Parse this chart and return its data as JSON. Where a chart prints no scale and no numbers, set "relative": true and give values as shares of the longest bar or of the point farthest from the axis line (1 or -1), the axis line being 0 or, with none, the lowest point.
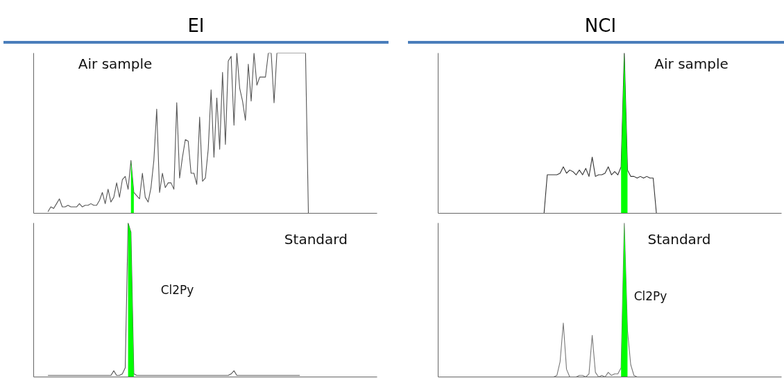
{
  "chart_data": [
    {
      "type": "line",
      "title": "EI",
      "relative": true,
      "tick_labels": false,
      "categories": [
        null,
        null,
        null,
        null,
        null,
        null,
        null,
        null,
        null,
        null,
        null,
        null,
        null,
        null,
        null,
        null,
        null,
        null,
        null,
        null,
        null,
        null,
        null,
        null,
        null,
        null,
        null,
        null,
        null,
        null,
        null,
        null,
        null,
        null,
        null,
        null,
        null,
        null,
        null,
        null,
        null,
        null,
        null,
        null,
        null,
        null,
        null,
        null,
        null,
        null,
        null,
        null,
        null,
        null,
        null,
        null,
        null,
        null,
        null,
        null,
        null,
        null,
        null,
        null,
        null,
        null,
        null,
        null,
        null,
        null,
        null,
        null,
        null,
        null,
        null,
        null,
        null,
        null,
        null,
        null,
        null,
        null,
        null,
        null,
        null,
        null,
        null,
        null,
        null,
        null,
        null,
        null,
        null,
        null,
        null,
        null,
        null,
        null,
        null,
        null,
        null,
        null,
        null,
        null,
        null,
        null,
        null,
        null,
        null,
        null,
        null,
        null,
        null,
        null,
        null,
        null,
        null,
        null,
        null,
        null,
        null
      ],
      "series": [
        {
          "color": "#555555",
          "values": [
            null,
            null,
            null,
            null,
            null,
            0.01,
            0.04,
            0.03,
            0.06,
            0.09,
            0.04,
            0.04,
            0.05,
            0.04,
            0.04,
            0.04,
            0.06,
            0.04,
            0.05,
            0.05,
            0.06,
            0.05,
            0.05,
            0.08,
            0.13,
            0.06,
            0.15,
            0.07,
            0.1,
            0.19,
            0.1,
            0.21,
            0.23,
            0.15,
            0.33,
            0.13,
            0.11,
            0.09,
            0.25,
            0.1,
            0.07,
            0.16,
            0.33,
            0.65,
            0.13,
            0.25,
            0.16,
            0.19,
            0.19,
            0.15,
            0.69,
            0.22,
            0.35,
            0.46,
            0.45,
            0.25,
            0.25,
            0.18,
            0.6,
            0.2,
            0.22,
            0.4,
            0.77,
            0.35,
            0.72,
            0.4,
            0.88,
            0.43,
            0.95,
            0.98,
            0.55,
            1.0,
            0.78,
            0.7,
            0.58,
            0.93,
            0.7,
            1.0,
            0.8,
            0.85,
            0.85,
            0.85,
            1.0,
            1.0,
            0.69,
            1.0,
            1.0,
            1.0,
            1.0,
            1.0,
            1.0,
            1.0,
            1.0,
            1.0,
            1.0,
            1.0,
            0,
            null,
            null,
            null,
            null,
            null,
            null,
            null,
            null,
            null,
            null,
            null,
            null,
            null,
            null,
            null,
            null,
            null,
            null,
            null,
            null,
            null,
            null,
            null,
            null
          ]
        },
        {
          "type": "area",
          "color": "#00ff00",
          "values": [
            null,
            null,
            null,
            null,
            null,
            null,
            null,
            null,
            null,
            null,
            null,
            null,
            null,
            null,
            null,
            null,
            null,
            null,
            null,
            null,
            null,
            null,
            null,
            null,
            null,
            null,
            null,
            null,
            null,
            null,
            null,
            null,
            null,
            null,
            0.33,
            0.13,
            null,
            null,
            null,
            null,
            null,
            null,
            null,
            null,
            null,
            null,
            null,
            null,
            null,
            null,
            null,
            null,
            null,
            null,
            null,
            null,
            null,
            null,
            null,
            null,
            null,
            null,
            null,
            null,
            null,
            null,
            null,
            null,
            null,
            null,
            null,
            null,
            null,
            null,
            null,
            null,
            null,
            null,
            null,
            null,
            null,
            null,
            null,
            null,
            null,
            null,
            null,
            null,
            null,
            null,
            null,
            null,
            null,
            null,
            null,
            null,
            null,
            null,
            null,
            null,
            null,
            null,
            null,
            null,
            null,
            null,
            null,
            null,
            null,
            null,
            null,
            null,
            null,
            null,
            null,
            null,
            null,
            null,
            null,
            null,
            null
          ]
        }
      ],
      "annotations": [
        "Air sample"
      ]
    },
    {
      "type": "line",
      "relative": true,
      "tick_labels": false,
      "categories": [
        null,
        null,
        null,
        null,
        null,
        null,
        null,
        null,
        null,
        null,
        null,
        null,
        null,
        null,
        null,
        null,
        null,
        null,
        null,
        null,
        null,
        null,
        null,
        null,
        null,
        null,
        null,
        null,
        null,
        null,
        null,
        null,
        null,
        null,
        null,
        null,
        null,
        null,
        null,
        null,
        null,
        null,
        null,
        null,
        null,
        null,
        null,
        null,
        null,
        null,
        null,
        null,
        null,
        null,
        null,
        null,
        null,
        null,
        null,
        null,
        null,
        null,
        null,
        null,
        null,
        null,
        null,
        null,
        null,
        null,
        null,
        null,
        null,
        null,
        null,
        null,
        null,
        null,
        null,
        null,
        null,
        null,
        null,
        null,
        null,
        null,
        null,
        null,
        null,
        null,
        null,
        null,
        null,
        null,
        null,
        null,
        null,
        null,
        null,
        null,
        null,
        null,
        null,
        null,
        null,
        null,
        null,
        null,
        null,
        null,
        null,
        null,
        null,
        null,
        null,
        null,
        null,
        null,
        null,
        null,
        null
      ],
      "series": [
        {
          "color": "#555555",
          "values": [
            null,
            null,
            null,
            null,
            null,
            0.01,
            0.01,
            0.01,
            0.01,
            0.01,
            0.01,
            0.01,
            0.01,
            0.01,
            0.01,
            0.01,
            0.01,
            0.01,
            0.01,
            0.01,
            0.01,
            0.01,
            0.01,
            0.01,
            0.01,
            0.01,
            0.01,
            0.01,
            0.04,
            0.01,
            0.01,
            0.02,
            0.06,
            1.0,
            0.94,
            0.02,
            0.01,
            0.01,
            0.01,
            0.01,
            0.01,
            0.01,
            0.01,
            0.01,
            0.01,
            0.01,
            0.01,
            0.01,
            0.01,
            0.01,
            0.01,
            0.01,
            0.01,
            0.01,
            0.01,
            0.01,
            0.01,
            0.01,
            0.01,
            0.01,
            0.01,
            0.01,
            0.01,
            0.01,
            0.01,
            0.01,
            0.01,
            0.01,
            0.01,
            0.02,
            0.04,
            0.01,
            0.01,
            0.01,
            0.01,
            0.01,
            0.01,
            0.01,
            0.01,
            0.01,
            0.01,
            0.01,
            0.01,
            0.01,
            0.01,
            0.01,
            0.01,
            0.01,
            0.01,
            0.01,
            0.01,
            0.01,
            0.01,
            0.01,
            null,
            null,
            null,
            null,
            null,
            null,
            null,
            null,
            null,
            null,
            null,
            null,
            null,
            null,
            null,
            null,
            null,
            null,
            null,
            null,
            null,
            null,
            null,
            null,
            null,
            null,
            null
          ]
        },
        {
          "type": "area",
          "color": "#00ff00",
          "values": [
            null,
            null,
            null,
            null,
            null,
            null,
            null,
            null,
            null,
            null,
            null,
            null,
            null,
            null,
            null,
            null,
            null,
            null,
            null,
            null,
            null,
            null,
            null,
            null,
            null,
            null,
            null,
            null,
            null,
            null,
            null,
            null,
            null,
            1.0,
            0.94,
            0.02,
            null,
            null,
            null,
            null,
            null,
            null,
            null,
            null,
            null,
            null,
            null,
            null,
            null,
            null,
            null,
            null,
            null,
            null,
            null,
            null,
            null,
            null,
            null,
            null,
            null,
            null,
            null,
            null,
            null,
            null,
            null,
            null,
            null,
            null,
            null,
            null,
            null,
            null,
            null,
            null,
            null,
            null,
            null,
            null,
            null,
            null,
            null,
            null,
            null,
            null,
            null,
            null,
            null,
            null,
            null,
            null,
            null,
            null,
            null,
            null,
            null,
            null,
            null,
            null,
            null,
            null,
            null,
            null,
            null,
            null,
            null,
            null,
            null,
            null,
            null,
            null,
            null,
            null,
            null,
            null,
            null,
            null,
            null,
            null,
            null
          ]
        }
      ],
      "annotations": [
        "Standard",
        "Cl2Py"
      ]
    },
    {
      "type": "line",
      "title": "NCI",
      "relative": true,
      "tick_labels": false,
      "categories": [
        null,
        null,
        null,
        null,
        null,
        null,
        null,
        null,
        null,
        null,
        null,
        null,
        null,
        null,
        null,
        null,
        null,
        null,
        null,
        null,
        null,
        null,
        null,
        null,
        null,
        null,
        null,
        null,
        null,
        null,
        null,
        null,
        null,
        null,
        null,
        null,
        null,
        null,
        null,
        null,
        null,
        null,
        null,
        null,
        null,
        null,
        null,
        null,
        null,
        null,
        null,
        null,
        null,
        null,
        null,
        null,
        null,
        null,
        null,
        null,
        null,
        null,
        null,
        null,
        null,
        null,
        null,
        null,
        null,
        null,
        null,
        null,
        null,
        null,
        null,
        null,
        null,
        null,
        null,
        null,
        null,
        null,
        null,
        null,
        null,
        null,
        null,
        null,
        null,
        null,
        null,
        null,
        null,
        null,
        null,
        null,
        null,
        null,
        null,
        null,
        null,
        null,
        null,
        null,
        null,
        null,
        null,
        null
      ],
      "series": [
        {
          "color": "#333333",
          "values": [
            null,
            null,
            null,
            null,
            null,
            null,
            null,
            null,
            null,
            null,
            null,
            null,
            null,
            null,
            null,
            null,
            null,
            null,
            null,
            null,
            null,
            null,
            null,
            null,
            null,
            null,
            null,
            null,
            null,
            null,
            null,
            null,
            null,
            0,
            0.24,
            0.24,
            0.24,
            0.24,
            0.25,
            0.29,
            0.25,
            0.27,
            0.26,
            0.24,
            0.27,
            0.24,
            0.28,
            0.23,
            0.35,
            0.23,
            0.24,
            0.24,
            0.25,
            0.29,
            0.24,
            0.26,
            0.24,
            0.29,
            1.0,
            0.27,
            0.23,
            0.23,
            0.22,
            0.23,
            0.22,
            0.23,
            0.22,
            0.22,
            0,
            null,
            null,
            null,
            null,
            null,
            null,
            null,
            null,
            null,
            null,
            null,
            null,
            null,
            null,
            null,
            null,
            null,
            null,
            null,
            null,
            null,
            null,
            null,
            null,
            null,
            null,
            null,
            null,
            null,
            null,
            null,
            null,
            null,
            null,
            null,
            null,
            null,
            null,
            null
          ]
        },
        {
          "type": "area",
          "color": "#00ff00",
          "values": [
            null,
            null,
            null,
            null,
            null,
            null,
            null,
            null,
            null,
            null,
            null,
            null,
            null,
            null,
            null,
            null,
            null,
            null,
            null,
            null,
            null,
            null,
            null,
            null,
            null,
            null,
            null,
            null,
            null,
            null,
            null,
            null,
            null,
            null,
            null,
            null,
            null,
            null,
            null,
            null,
            null,
            null,
            null,
            null,
            null,
            null,
            null,
            null,
            null,
            null,
            null,
            null,
            null,
            null,
            null,
            null,
            null,
            0.29,
            1.0,
            0.27,
            null,
            null,
            null,
            null,
            null,
            null,
            null,
            null,
            null,
            null,
            null,
            null,
            null,
            null,
            null,
            null,
            null,
            null,
            null,
            null,
            null,
            null,
            null,
            null,
            null,
            null,
            null,
            null,
            null,
            null,
            null,
            null,
            null,
            null,
            null,
            null,
            null,
            null,
            null,
            null,
            null,
            null,
            null,
            null,
            null,
            null,
            null,
            null
          ]
        }
      ],
      "annotations": [
        "Air sample"
      ]
    },
    {
      "type": "line",
      "relative": true,
      "tick_labels": false,
      "categories": [
        null,
        null,
        null,
        null,
        null,
        null,
        null,
        null,
        null,
        null,
        null,
        null,
        null,
        null,
        null,
        null,
        null,
        null,
        null,
        null,
        null,
        null,
        null,
        null,
        null,
        null,
        null,
        null,
        null,
        null,
        null,
        null,
        null,
        null,
        null,
        null,
        null,
        null,
        null,
        null,
        null,
        null,
        null,
        null,
        null,
        null,
        null,
        null,
        null,
        null,
        null,
        null,
        null,
        null,
        null,
        null,
        null,
        null,
        null,
        null,
        null,
        null,
        null,
        null,
        null,
        null,
        null,
        null,
        null,
        null,
        null,
        null,
        null,
        null,
        null,
        null,
        null,
        null,
        null,
        null,
        null,
        null,
        null,
        null,
        null,
        null,
        null,
        null,
        null,
        null,
        null,
        null,
        null,
        null,
        null,
        null,
        null,
        null,
        null,
        null,
        null,
        null,
        null,
        null,
        null,
        null,
        null,
        null
      ],
      "series": [
        {
          "color": "#777777",
          "values": [
            null,
            null,
            null,
            null,
            null,
            null,
            null,
            null,
            null,
            null,
            null,
            null,
            null,
            null,
            null,
            null,
            null,
            null,
            null,
            null,
            null,
            null,
            null,
            null,
            null,
            null,
            null,
            null,
            null,
            null,
            null,
            null,
            null,
            null,
            0,
            0,
            0,
            0.01,
            0.1,
            0.35,
            0.05,
            0,
            0,
            0,
            0.01,
            0.01,
            0,
            0.02,
            0.27,
            0.03,
            0,
            0.01,
            0,
            0.03,
            0.01,
            0.02,
            0.02,
            0.06,
            1.0,
            0.3,
            0.08,
            0.01,
            0,
            0,
            0,
            0,
            0,
            0,
            null,
            null,
            null,
            null,
            null,
            null,
            null,
            null,
            null,
            null,
            null,
            null,
            null,
            null,
            null,
            null,
            null,
            null,
            null,
            null,
            null,
            null,
            null,
            null,
            null,
            null,
            null,
            null,
            null,
            null,
            null,
            null,
            null,
            null,
            null,
            null,
            null,
            null,
            null,
            null
          ]
        },
        {
          "type": "area",
          "color": "#00ff00",
          "values": [
            null,
            null,
            null,
            null,
            null,
            null,
            null,
            null,
            null,
            null,
            null,
            null,
            null,
            null,
            null,
            null,
            null,
            null,
            null,
            null,
            null,
            null,
            null,
            null,
            null,
            null,
            null,
            null,
            null,
            null,
            null,
            null,
            null,
            null,
            null,
            null,
            null,
            null,
            null,
            null,
            null,
            null,
            null,
            null,
            null,
            null,
            null,
            null,
            null,
            null,
            null,
            null,
            null,
            null,
            null,
            null,
            null,
            0.06,
            1.0,
            0.3,
            null,
            null,
            null,
            null,
            null,
            null,
            null,
            null,
            null,
            null,
            null,
            null,
            null,
            null,
            null,
            null,
            null,
            null,
            null,
            null,
            null,
            null,
            null,
            null,
            null,
            null,
            null,
            null,
            null,
            null,
            null,
            null,
            null,
            null,
            null,
            null,
            null,
            null,
            null,
            null,
            null,
            null,
            null,
            null,
            null,
            null,
            null,
            null
          ]
        }
      ],
      "annotations": [
        "Standard",
        "Cl2Py"
      ]
    }
  ]
}
